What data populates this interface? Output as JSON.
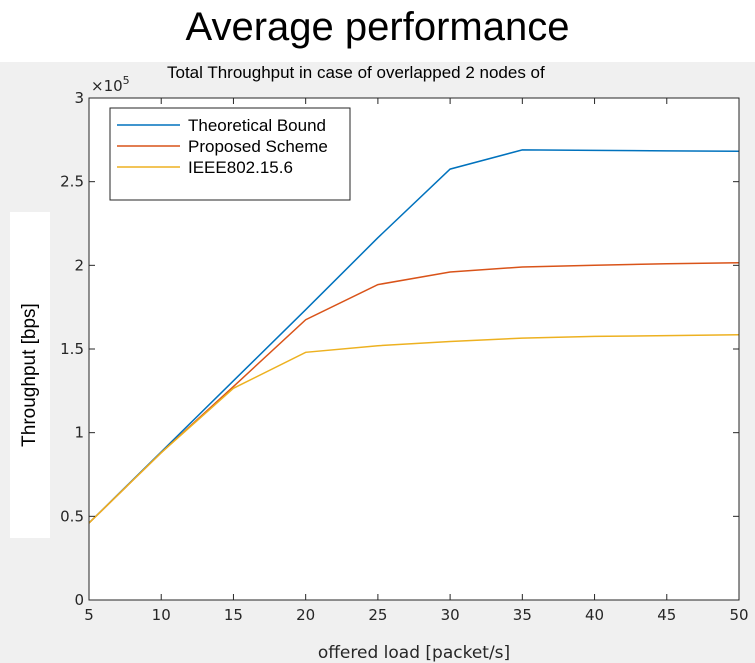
{
  "heading": "Average performance",
  "chart_data": {
    "type": "line",
    "title": "Total Throughput in case of overlapped 2 nodes of",
    "xlabel": "offered load [packet/s]",
    "ylabel": "Throughput [bps]",
    "y_multiplier": "×10",
    "y_multiplier_exp": "5",
    "xlim": [
      5,
      50
    ],
    "ylim": [
      0,
      3
    ],
    "x_ticks": [
      5,
      10,
      15,
      20,
      25,
      30,
      35,
      40,
      45,
      50
    ],
    "y_ticks": [
      0,
      0.5,
      1,
      1.5,
      2,
      2.5,
      3
    ],
    "y_tick_labels": [
      "0",
      "0.5",
      "1",
      "1.5",
      "2",
      "2.5",
      "3"
    ],
    "grid": false,
    "legend_position": "top-left",
    "x": [
      5,
      10,
      15,
      20,
      25,
      30,
      35,
      40,
      45,
      50
    ],
    "series": [
      {
        "name": "Theoretical Bound",
        "color": "#0072bd",
        "values": [
          0.46,
          0.885,
          1.31,
          1.735,
          2.165,
          2.575,
          2.69,
          2.687,
          2.684,
          2.682
        ]
      },
      {
        "name": "Proposed Scheme",
        "color": "#d95319",
        "values": [
          0.46,
          0.88,
          1.275,
          1.675,
          1.885,
          1.96,
          1.99,
          2.0,
          2.01,
          2.015
        ]
      },
      {
        "name": "IEEE802.15.6",
        "color": "#edb120",
        "values": [
          0.46,
          0.88,
          1.265,
          1.48,
          1.52,
          1.545,
          1.565,
          1.575,
          1.58,
          1.585
        ]
      }
    ]
  }
}
